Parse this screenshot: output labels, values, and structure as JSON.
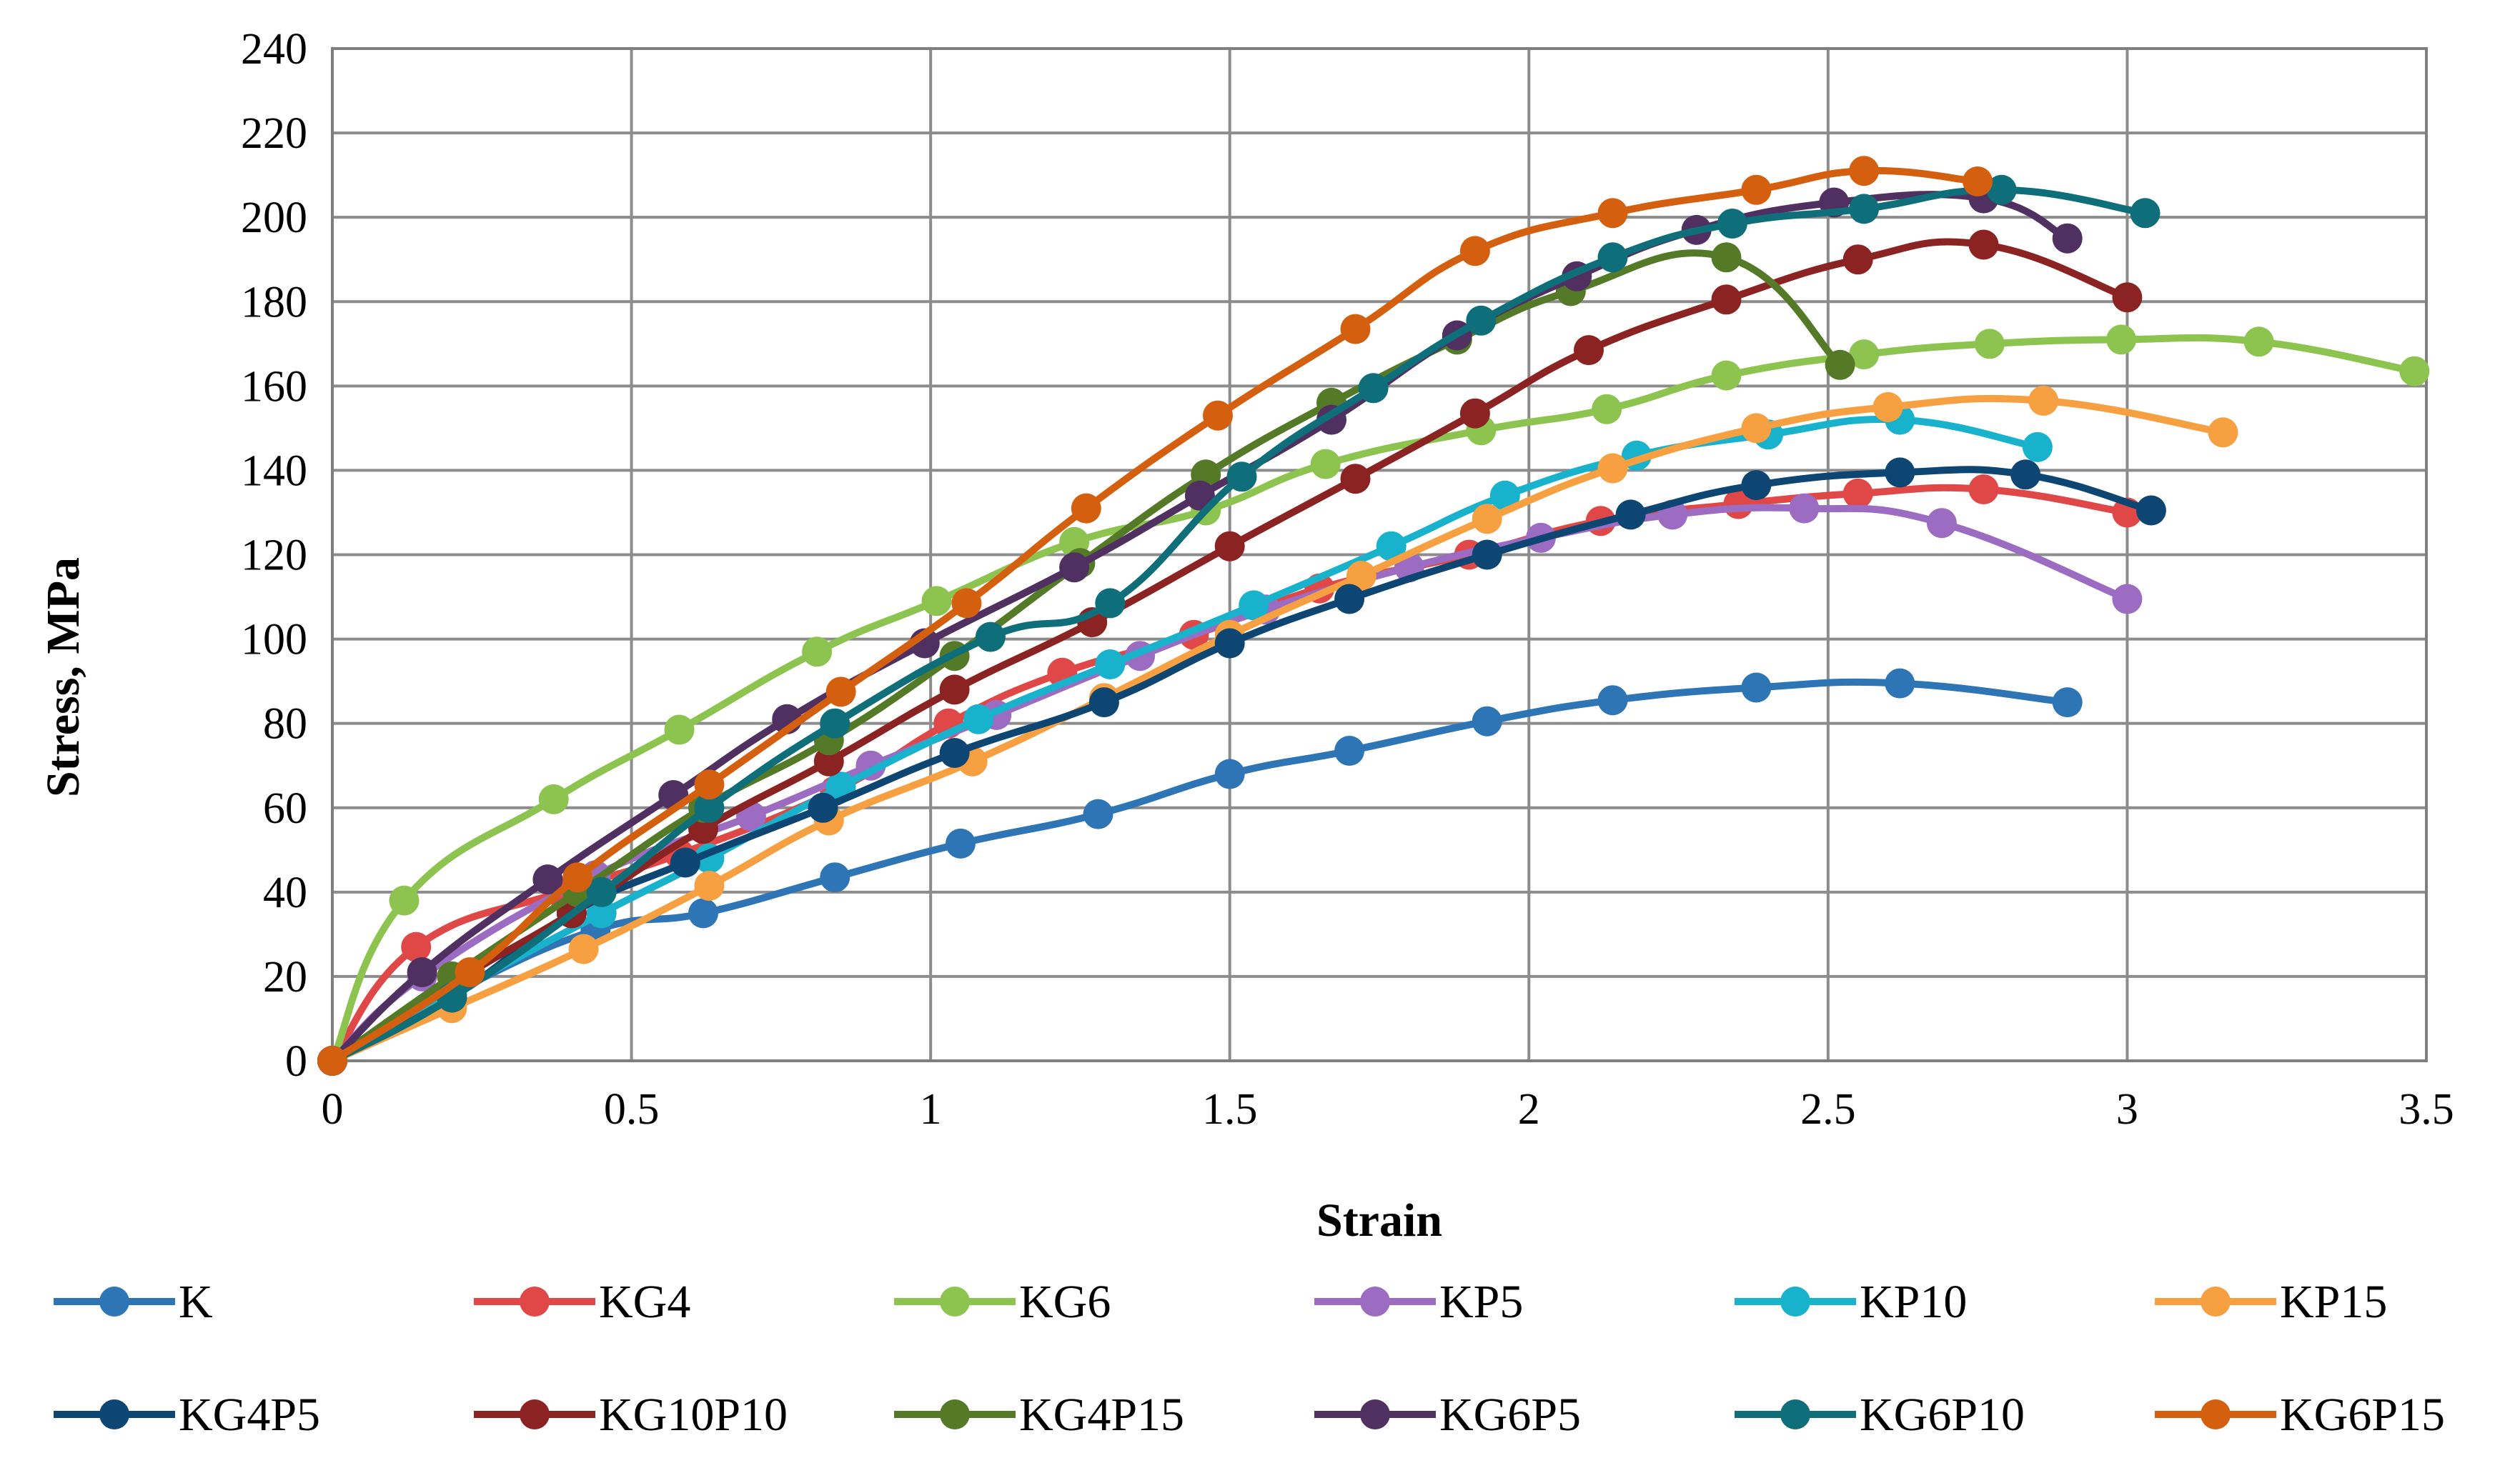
{
  "chart_data": {
    "type": "line",
    "title": "",
    "xlabel": "Strain",
    "ylabel": "Stress, MPa",
    "xlim": [
      0,
      3.5
    ],
    "ylim": [
      0,
      240
    ],
    "xticks": [
      0,
      0.5,
      1,
      1.5,
      2,
      2.5,
      3,
      3.5
    ],
    "xtick_labels": [
      "0",
      "0.5",
      "1",
      "1.5",
      "2",
      "2.5",
      "3",
      "3.5"
    ],
    "yticks": [
      0,
      20,
      40,
      60,
      80,
      100,
      120,
      140,
      160,
      180,
      200,
      220,
      240
    ],
    "ytick_labels": [
      "0",
      "20",
      "40",
      "60",
      "80",
      "100",
      "120",
      "140",
      "160",
      "180",
      "200",
      "220",
      "240"
    ],
    "grid": true,
    "legend_position": "bottom",
    "series": [
      {
        "name": "K",
        "color": "#2E75B6",
        "points": [
          [
            0,
            0
          ],
          [
            0.2,
            16
          ],
          [
            0.44,
            31
          ],
          [
            0.62,
            35
          ],
          [
            0.84,
            43.5
          ],
          [
            1.05,
            51.5
          ],
          [
            1.28,
            58.5
          ],
          [
            1.5,
            68
          ],
          [
            1.7,
            73.5
          ],
          [
            1.93,
            80.5
          ],
          [
            2.14,
            85.5
          ],
          [
            2.38,
            88.5
          ],
          [
            2.62,
            89.5
          ],
          [
            2.9,
            85
          ]
        ]
      },
      {
        "name": "KG4",
        "color": "#E04848",
        "points": [
          [
            0,
            0
          ],
          [
            0.14,
            27
          ],
          [
            0.38,
            40
          ],
          [
            0.58,
            49
          ],
          [
            0.84,
            64
          ],
          [
            1.03,
            80
          ],
          [
            1.22,
            92
          ],
          [
            1.44,
            101
          ],
          [
            1.65,
            112
          ],
          [
            1.9,
            120
          ],
          [
            2.12,
            128
          ],
          [
            2.35,
            132
          ],
          [
            2.55,
            134.5
          ],
          [
            2.76,
            135.5
          ],
          [
            3,
            130
          ]
        ]
      },
      {
        "name": "KG6",
        "color": "#8DC44F",
        "points": [
          [
            0,
            0
          ],
          [
            0.12,
            38
          ],
          [
            0.37,
            62
          ],
          [
            0.58,
            78.5
          ],
          [
            0.81,
            97
          ],
          [
            1.01,
            109
          ],
          [
            1.24,
            123
          ],
          [
            1.46,
            130.5
          ],
          [
            1.66,
            141.5
          ],
          [
            1.92,
            149.5
          ],
          [
            2.13,
            154.5
          ],
          [
            2.33,
            162.5
          ],
          [
            2.56,
            167.5
          ],
          [
            2.77,
            170
          ],
          [
            2.99,
            171
          ],
          [
            3.22,
            170.5
          ],
          [
            3.48,
            163.5
          ]
        ]
      },
      {
        "name": "KP5",
        "color": "#9B6CC2",
        "points": [
          [
            0,
            0
          ],
          [
            0.15,
            20
          ],
          [
            0.44,
            44
          ],
          [
            0.7,
            58
          ],
          [
            0.9,
            70
          ],
          [
            1.11,
            82
          ],
          [
            1.35,
            96
          ],
          [
            1.56,
            107
          ],
          [
            1.8,
            117
          ],
          [
            2.02,
            124
          ],
          [
            2.24,
            129.5
          ],
          [
            2.46,
            131
          ],
          [
            2.69,
            127.5
          ],
          [
            3,
            109.5
          ]
        ]
      },
      {
        "name": "KP10",
        "color": "#19B2CC",
        "points": [
          [
            0,
            0
          ],
          [
            0.2,
            16
          ],
          [
            0.45,
            35
          ],
          [
            0.63,
            48
          ],
          [
            0.85,
            65
          ],
          [
            1.08,
            81
          ],
          [
            1.3,
            94
          ],
          [
            1.54,
            108
          ],
          [
            1.77,
            122
          ],
          [
            1.96,
            134
          ],
          [
            2.18,
            143.5
          ],
          [
            2.4,
            148.5
          ],
          [
            2.62,
            152
          ],
          [
            2.85,
            145.5
          ]
        ]
      },
      {
        "name": "KP15",
        "color": "#F7A041",
        "points": [
          [
            0,
            0
          ],
          [
            0.2,
            12.5
          ],
          [
            0.42,
            26.5
          ],
          [
            0.63,
            41.5
          ],
          [
            0.83,
            57
          ],
          [
            1.07,
            71
          ],
          [
            1.29,
            86
          ],
          [
            1.5,
            101
          ],
          [
            1.72,
            115
          ],
          [
            1.93,
            128.5
          ],
          [
            2.14,
            140.5
          ],
          [
            2.38,
            150
          ],
          [
            2.6,
            155
          ],
          [
            2.86,
            156.5
          ],
          [
            3.16,
            149
          ]
        ]
      },
      {
        "name": "KG4P5",
        "color": "#0D4672",
        "points": [
          [
            0,
            0
          ],
          [
            0.2,
            15
          ],
          [
            0.4,
            35
          ],
          [
            0.59,
            47
          ],
          [
            0.82,
            60
          ],
          [
            1.04,
            73
          ],
          [
            1.29,
            85
          ],
          [
            1.5,
            99
          ],
          [
            1.7,
            109.5
          ],
          [
            1.93,
            120
          ],
          [
            2.17,
            129.5
          ],
          [
            2.38,
            136.5
          ],
          [
            2.62,
            139.5
          ],
          [
            2.83,
            139
          ],
          [
            3.04,
            130.5
          ]
        ]
      },
      {
        "name": "KG10P10",
        "color": "#8C2323",
        "points": [
          [
            0,
            0
          ],
          [
            0.22,
            20
          ],
          [
            0.4,
            35
          ],
          [
            0.62,
            55
          ],
          [
            0.83,
            71
          ],
          [
            1.04,
            88
          ],
          [
            1.27,
            104
          ],
          [
            1.5,
            122
          ],
          [
            1.71,
            138
          ],
          [
            1.91,
            153.5
          ],
          [
            2.1,
            168.5
          ],
          [
            2.33,
            180.5
          ],
          [
            2.55,
            190
          ],
          [
            2.76,
            193.5
          ],
          [
            3,
            181
          ]
        ]
      },
      {
        "name": "KG4P15",
        "color": "#547A28",
        "points": [
          [
            0,
            0
          ],
          [
            0.2,
            20
          ],
          [
            0.41,
            40
          ],
          [
            0.62,
            60
          ],
          [
            0.83,
            76
          ],
          [
            1.04,
            96
          ],
          [
            1.25,
            118
          ],
          [
            1.46,
            139
          ],
          [
            1.67,
            156
          ],
          [
            1.88,
            171
          ],
          [
            2.07,
            182.5
          ],
          [
            2.33,
            190.5
          ],
          [
            2.52,
            165
          ]
        ]
      },
      {
        "name": "KG6P5",
        "color": "#4F3060",
        "points": [
          [
            0,
            0
          ],
          [
            0.15,
            21
          ],
          [
            0.36,
            43
          ],
          [
            0.57,
            63
          ],
          [
            0.76,
            81
          ],
          [
            0.99,
            99
          ],
          [
            1.24,
            117
          ],
          [
            1.45,
            134
          ],
          [
            1.67,
            152
          ],
          [
            1.88,
            172
          ],
          [
            2.08,
            186
          ],
          [
            2.28,
            197
          ],
          [
            2.51,
            203.5
          ],
          [
            2.76,
            204.5
          ],
          [
            2.9,
            195
          ]
        ]
      },
      {
        "name": "KG6P10",
        "color": "#0E6E7A",
        "points": [
          [
            0,
            0
          ],
          [
            0.2,
            15
          ],
          [
            0.45,
            40
          ],
          [
            0.63,
            60
          ],
          [
            0.84,
            80
          ],
          [
            1.1,
            100.5
          ],
          [
            1.3,
            108.5
          ],
          [
            1.52,
            138.5
          ],
          [
            1.74,
            159.5
          ],
          [
            1.92,
            175.5
          ],
          [
            2.14,
            190.5
          ],
          [
            2.34,
            198.5
          ],
          [
            2.56,
            202
          ],
          [
            2.79,
            206.5
          ],
          [
            3.03,
            201
          ]
        ]
      },
      {
        "name": "KG6P15",
        "color": "#D4600F",
        "points": [
          [
            0,
            0
          ],
          [
            0.23,
            21
          ],
          [
            0.41,
            43.5
          ],
          [
            0.63,
            65.5
          ],
          [
            0.85,
            87.5
          ],
          [
            1.06,
            108.5
          ],
          [
            1.26,
            131
          ],
          [
            1.48,
            153
          ],
          [
            1.71,
            173.5
          ],
          [
            1.91,
            192
          ],
          [
            2.14,
            201
          ],
          [
            2.38,
            206.5
          ],
          [
            2.56,
            211
          ],
          [
            2.75,
            208.5
          ]
        ]
      }
    ]
  }
}
